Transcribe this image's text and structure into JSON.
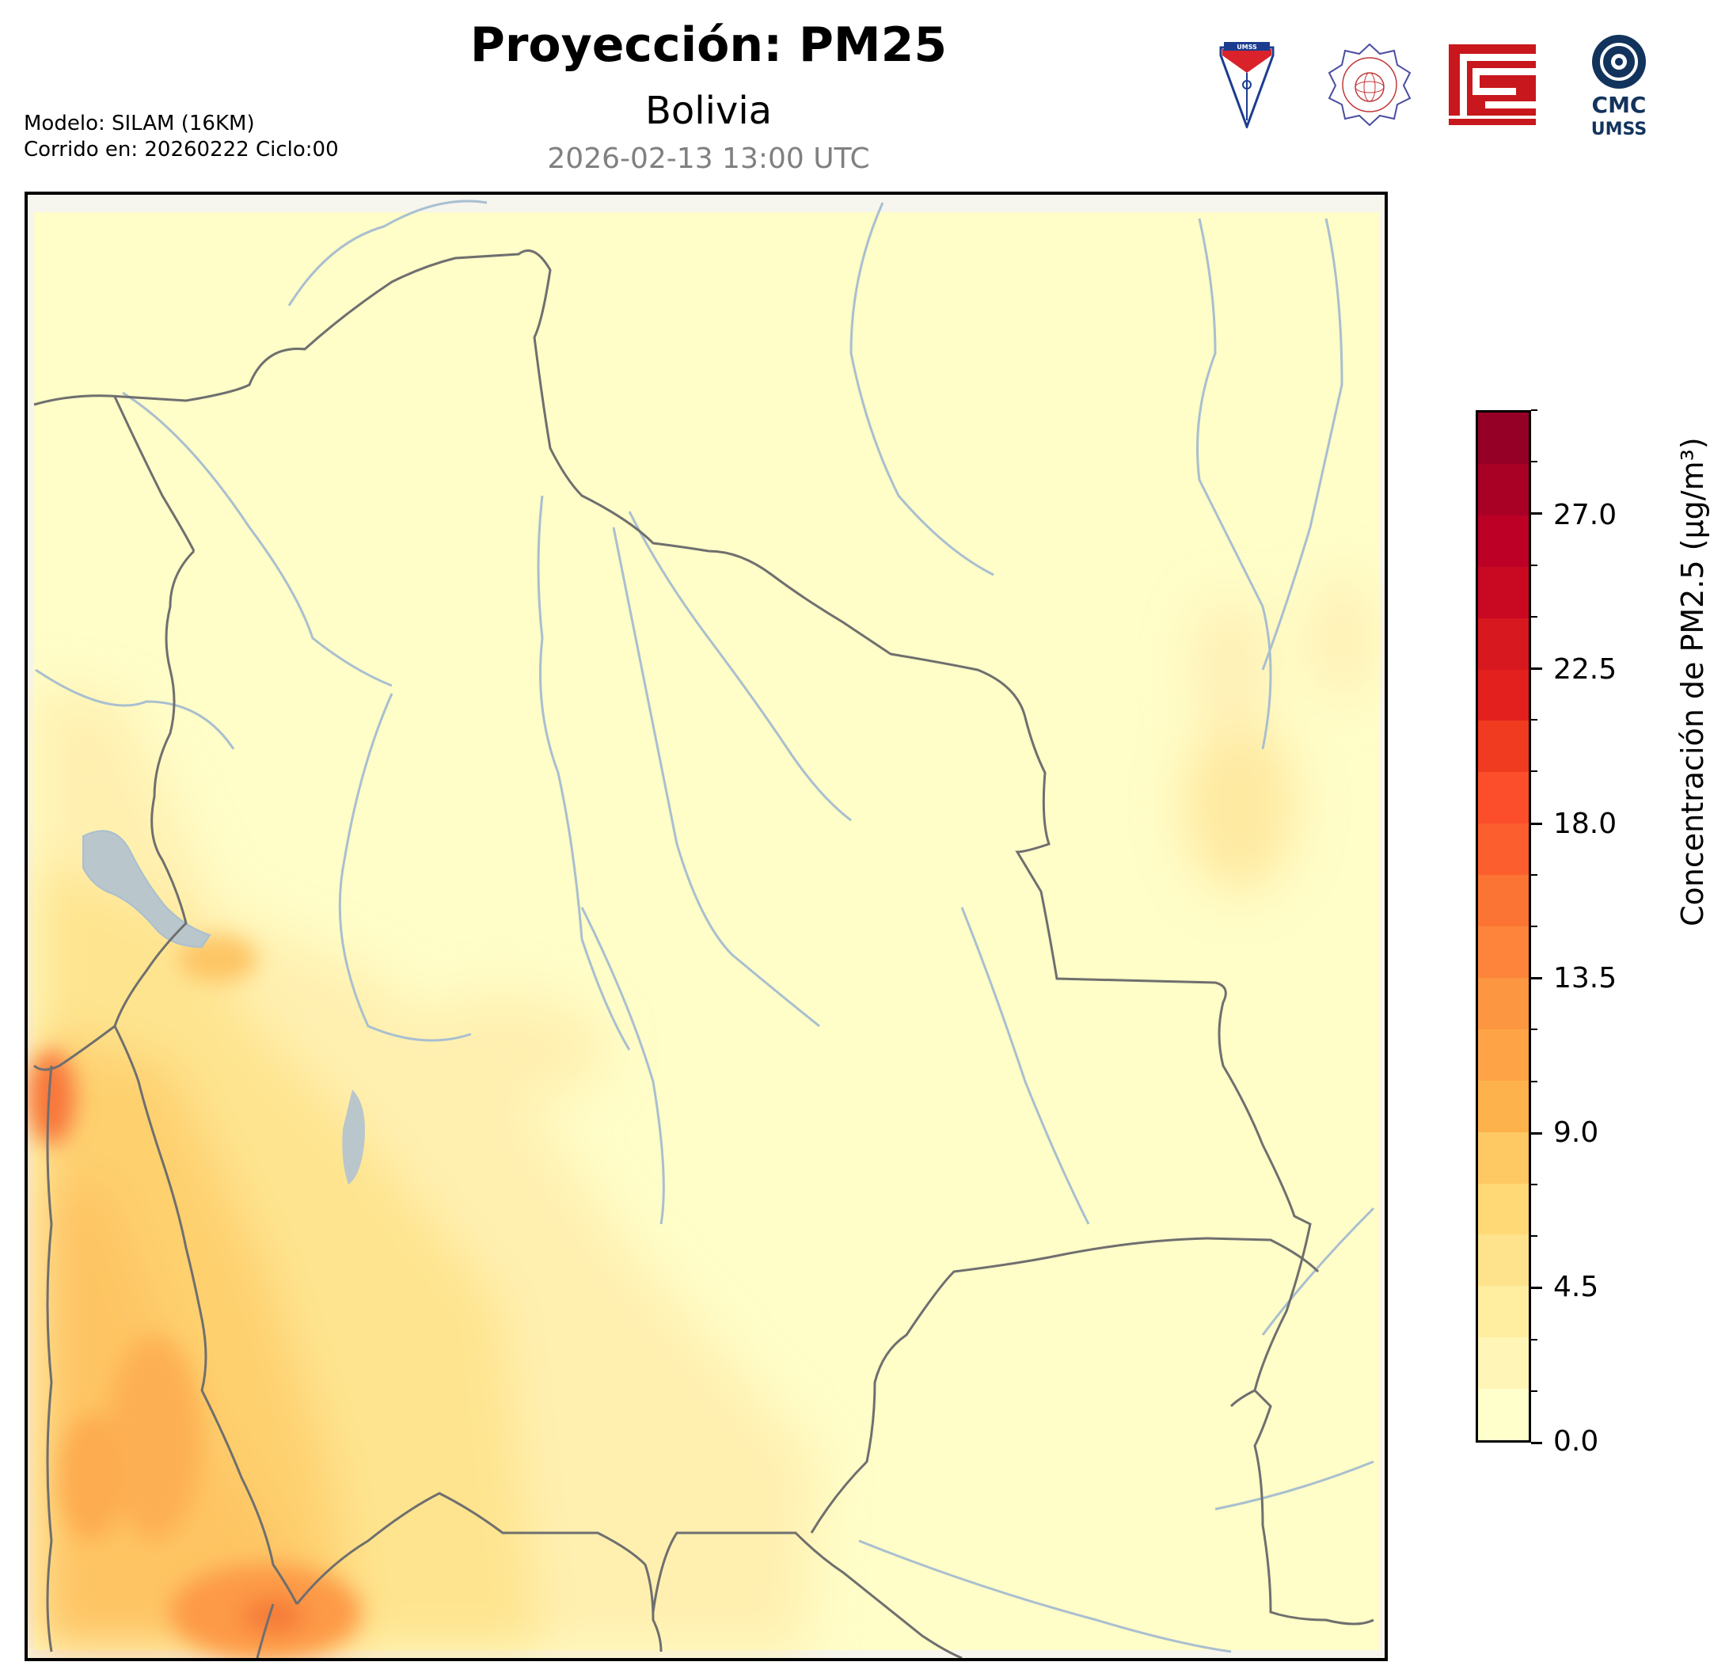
{
  "header": {
    "title": "Proyección: PM25",
    "subtitle": "Bolivia",
    "datetime": "2026-02-13 13:00 UTC",
    "model_line": "Modelo: SILAM (16KM)",
    "run_line": "Corrido en: 20260222 Ciclo:00"
  },
  "logos": [
    {
      "name": "umss-shield-logo",
      "text": "UMSS"
    },
    {
      "name": "departamento-fisica-seal-logo",
      "text": "DEPARTAMENTO DE FÍSICA"
    },
    {
      "name": "red-geometric-logo",
      "text": ""
    },
    {
      "name": "cmc-umss-logo",
      "text": "CMC UMSS"
    }
  ],
  "map": {
    "region": "Bolivia",
    "variable": "PM2.5",
    "colors": {
      "background_low": "#fffdc8",
      "border": "#6f6f6f",
      "river": "#a9bfd0",
      "lake": "#b9c6cc"
    }
  },
  "colorbar": {
    "label": "Concentración de PM2.5 (µg/m³)",
    "min": 0.0,
    "max": 30.0,
    "tick_labels": [
      "0.0",
      "4.5",
      "9.0",
      "13.5",
      "18.0",
      "22.5",
      "27.0"
    ],
    "tick_values": [
      0.0,
      4.5,
      9.0,
      13.5,
      18.0,
      22.5,
      27.0
    ],
    "step": 1.5,
    "band_colors": [
      "#ffffcc",
      "#fff5b6",
      "#ffeda0",
      "#fee38c",
      "#fed976",
      "#fec863",
      "#feb24c",
      "#fea446",
      "#fd9640",
      "#fd843a",
      "#fc7434",
      "#fc5e2e",
      "#fc4e2a",
      "#f03b20",
      "#e3201e",
      "#d7181f",
      "#c90822",
      "#bd0026",
      "#a90026",
      "#950026",
      "#800026",
      "#6a0022",
      "#56001d",
      "#430018"
    ]
  }
}
